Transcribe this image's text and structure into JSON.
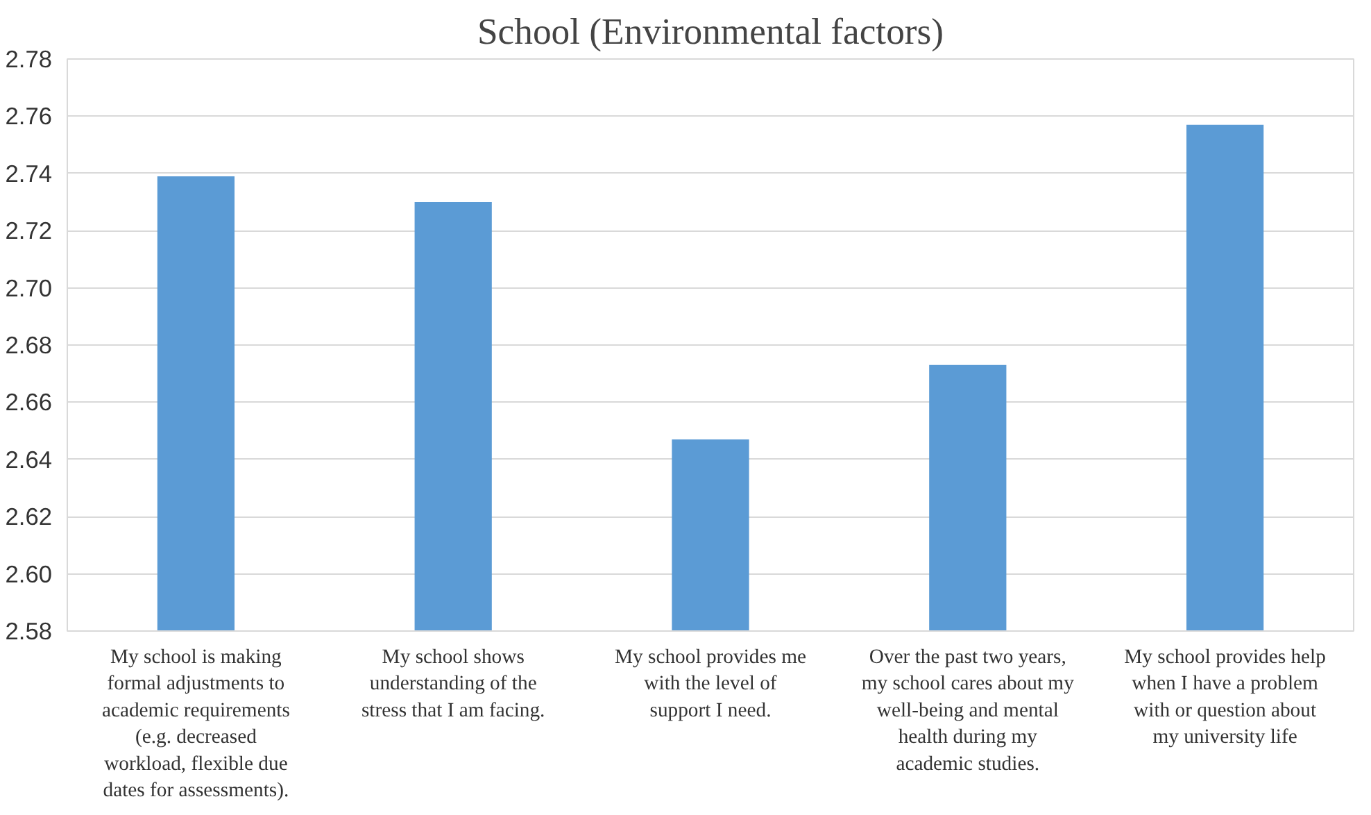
{
  "chart_data": {
    "type": "bar",
    "title": "School (Environmental factors)",
    "categories": [
      "My school is making formal adjustments to academic requirements (e.g. decreased workload, flexible due dates for assessments).",
      "My school shows understanding of the stress that I am facing.",
      "My school provides me with the level of support I need.",
      "Over the past two years, my school cares about my well-being and mental health during my academic studies.",
      "My school provides help when I have a problem with or question about my university life"
    ],
    "values": [
      2.739,
      2.73,
      2.647,
      2.673,
      2.757
    ],
    "color": "#5b9bd5",
    "ylim": [
      2.58,
      2.78
    ],
    "yticks": [
      2.58,
      {
        "value": 2.6,
        "label": "2.60"
      },
      2.62,
      2.64,
      2.66,
      2.68,
      {
        "value": 2.7,
        "label": "2.70"
      },
      2.72,
      2.74,
      2.76,
      2.78
    ],
    "grid": "y"
  }
}
